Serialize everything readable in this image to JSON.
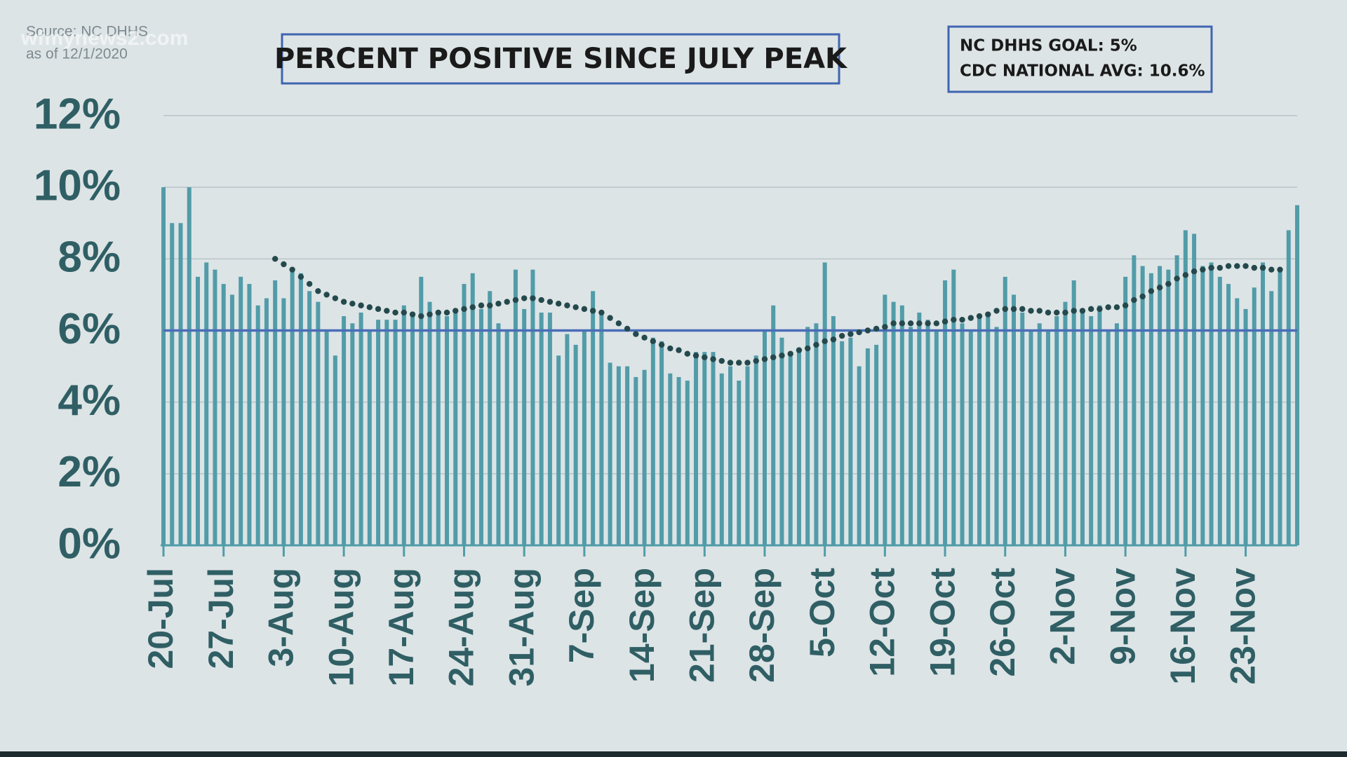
{
  "chart_data": {
    "type": "bar",
    "title": "PERCENT POSITIVE SINCE JULY PEAK",
    "source": "Source: NC DHHS",
    "as_of": "as of 12/1/2020",
    "watermark": "wfmynews2.com",
    "annotations": [
      "NC DHHS GOAL: 5%",
      "CDC NATIONAL AVG: 10.6%"
    ],
    "ylim": [
      0,
      12
    ],
    "yticks": [
      {
        "value": 0,
        "label": "0%"
      },
      {
        "value": 2,
        "label": "2%"
      },
      {
        "value": 4,
        "label": "4%"
      },
      {
        "value": 6,
        "label": "6%"
      },
      {
        "value": 8,
        "label": "8%"
      },
      {
        "value": 10,
        "label": "10%"
      },
      {
        "value": 12,
        "label": "12%"
      }
    ],
    "grid": true,
    "color": "#519ca8",
    "trend_color": "#24494c",
    "reference_line": 6,
    "reference_color": "#4a6db8",
    "categories": [
      "20-Jul",
      null,
      null,
      null,
      null,
      null,
      null,
      "27-Jul",
      null,
      null,
      null,
      null,
      null,
      null,
      "3-Aug",
      null,
      null,
      null,
      null,
      null,
      null,
      "10-Aug",
      null,
      null,
      null,
      null,
      null,
      null,
      "17-Aug",
      null,
      null,
      null,
      null,
      null,
      null,
      "24-Aug",
      null,
      null,
      null,
      null,
      null,
      null,
      "31-Aug",
      null,
      null,
      null,
      null,
      null,
      null,
      "7-Sep",
      null,
      null,
      null,
      null,
      null,
      null,
      "14-Sep",
      null,
      null,
      null,
      null,
      null,
      null,
      "21-Sep",
      null,
      null,
      null,
      null,
      null,
      null,
      "28-Sep",
      null,
      null,
      null,
      null,
      null,
      null,
      "5-Oct",
      null,
      null,
      null,
      null,
      null,
      null,
      "12-Oct",
      null,
      null,
      null,
      null,
      null,
      null,
      "19-Oct",
      null,
      null,
      null,
      null,
      null,
      null,
      "26-Oct",
      null,
      null,
      null,
      null,
      null,
      null,
      "2-Nov",
      null,
      null,
      null,
      null,
      null,
      null,
      "9-Nov",
      null,
      null,
      null,
      null,
      null,
      null,
      "16-Nov",
      null,
      null,
      null,
      null,
      null,
      null,
      "23-Nov",
      null,
      null,
      null,
      null,
      null,
      null
    ],
    "values": [
      10.0,
      9.0,
      9.0,
      10.0,
      7.5,
      7.9,
      7.7,
      7.3,
      7.0,
      7.5,
      7.3,
      6.7,
      6.9,
      7.4,
      6.9,
      7.7,
      7.6,
      7.1,
      6.8,
      6.0,
      5.3,
      6.4,
      6.2,
      6.5,
      6.0,
      6.3,
      6.3,
      6.3,
      6.7,
      6.5,
      7.5,
      6.8,
      6.5,
      6.4,
      6.5,
      7.3,
      7.6,
      6.6,
      7.1,
      6.2,
      6.0,
      7.7,
      6.6,
      7.7,
      6.5,
      6.5,
      5.3,
      5.9,
      5.6,
      6.0,
      7.1,
      6.5,
      5.1,
      5.0,
      5.0,
      4.7,
      4.9,
      5.8,
      5.7,
      4.8,
      4.7,
      4.6,
      5.4,
      5.4,
      5.4,
      4.8,
      5.0,
      4.6,
      5.0,
      5.3,
      6.0,
      6.7,
      5.8,
      5.4,
      5.4,
      6.1,
      6.2,
      7.9,
      6.4,
      5.7,
      5.8,
      5.0,
      5.5,
      5.6,
      7.0,
      6.8,
      6.7,
      6.1,
      6.5,
      6.3,
      6.0,
      7.4,
      7.7,
      6.2,
      6.0,
      6.4,
      6.4,
      6.1,
      7.5,
      7.0,
      6.5,
      6.0,
      6.2,
      6.0,
      6.4,
      6.8,
      7.4,
      6.5,
      6.4,
      6.7,
      6.0,
      6.2,
      7.5,
      8.1,
      7.8,
      7.6,
      7.8,
      7.7,
      8.1,
      8.8,
      8.7,
      7.8,
      7.9,
      7.5,
      7.3,
      6.9,
      6.6,
      7.2,
      7.9,
      7.1,
      7.7,
      8.8,
      9.5
    ],
    "trend_values": [
      null,
      null,
      null,
      null,
      null,
      null,
      null,
      null,
      null,
      null,
      null,
      null,
      null,
      8.0,
      7.85,
      7.7,
      7.5,
      7.3,
      7.1,
      7.0,
      6.9,
      6.8,
      6.75,
      6.7,
      6.65,
      6.6,
      6.55,
      6.5,
      6.5,
      6.45,
      6.4,
      6.45,
      6.5,
      6.5,
      6.55,
      6.6,
      6.65,
      6.7,
      6.7,
      6.75,
      6.8,
      6.85,
      6.9,
      6.9,
      6.85,
      6.8,
      6.75,
      6.7,
      6.65,
      6.6,
      6.55,
      6.5,
      6.35,
      6.2,
      6.05,
      5.9,
      5.8,
      5.7,
      5.6,
      5.5,
      5.45,
      5.35,
      5.3,
      5.25,
      5.2,
      5.15,
      5.1,
      5.1,
      5.1,
      5.15,
      5.2,
      5.25,
      5.3,
      5.35,
      5.45,
      5.5,
      5.6,
      5.7,
      5.75,
      5.85,
      5.9,
      5.95,
      6.0,
      6.05,
      6.1,
      6.2,
      6.2,
      6.2,
      6.2,
      6.2,
      6.2,
      6.25,
      6.3,
      6.3,
      6.35,
      6.4,
      6.45,
      6.55,
      6.6,
      6.6,
      6.6,
      6.55,
      6.55,
      6.5,
      6.5,
      6.5,
      6.55,
      6.55,
      6.6,
      6.6,
      6.65,
      6.65,
      6.7,
      6.85,
      6.95,
      7.1,
      7.2,
      7.3,
      7.45,
      7.55,
      7.65,
      7.7,
      7.75,
      7.75,
      7.8,
      7.8,
      7.8,
      7.75,
      7.75,
      7.7,
      7.7,
      null,
      null
    ]
  }
}
